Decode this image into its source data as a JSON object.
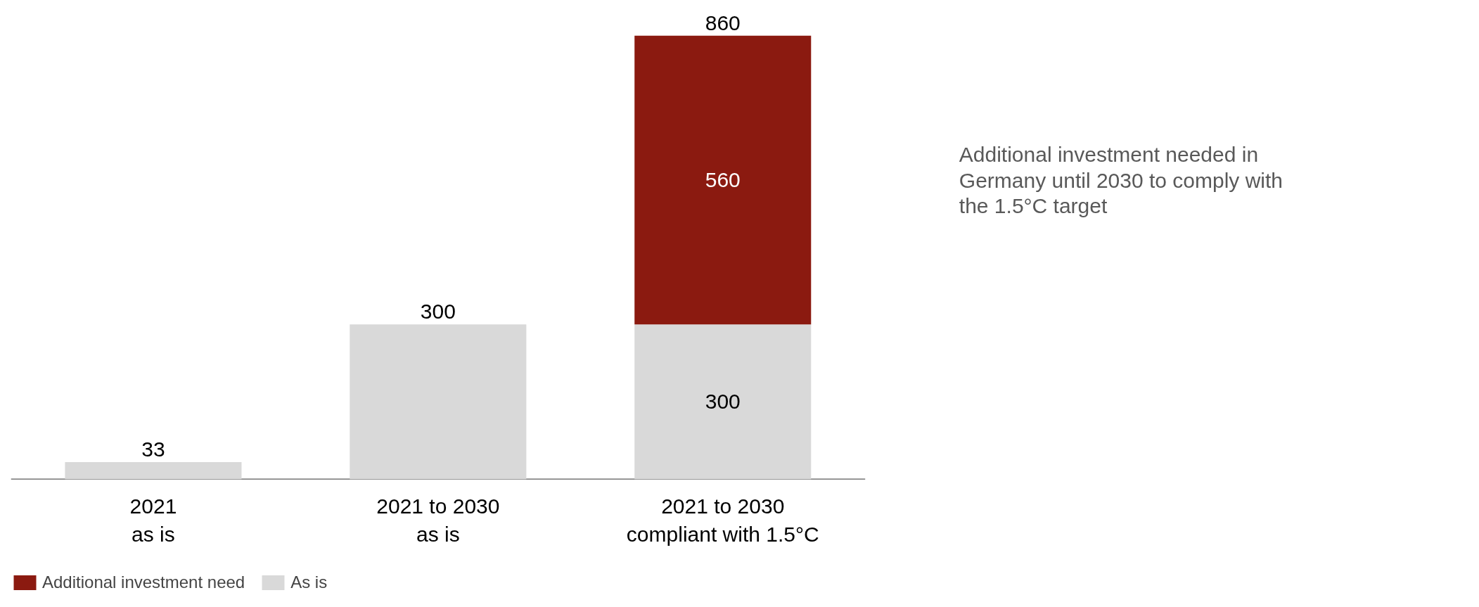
{
  "chart_data": {
    "type": "bar",
    "stacked": true,
    "categories": [
      "2021\nas is",
      "2021 to 2030\nas is",
      "2021 to 2030\ncompliant with 1.5°C"
    ],
    "series": [
      {
        "name": "As is",
        "color": "#d9d9d9",
        "values": [
          33,
          300,
          300
        ],
        "value_labels": [
          null,
          null,
          "300"
        ]
      },
      {
        "name": "Additional investment need",
        "color": "#8b1a10",
        "values": [
          null,
          null,
          560
        ],
        "value_labels": [
          null,
          null,
          "560"
        ]
      }
    ],
    "totals": [
      "33",
      "300",
      "860"
    ],
    "annotations": [
      "Additional investment needed in Germany until 2030 to comply with the 1.5°C target"
    ],
    "grid": false,
    "legend": "bottom left"
  }
}
